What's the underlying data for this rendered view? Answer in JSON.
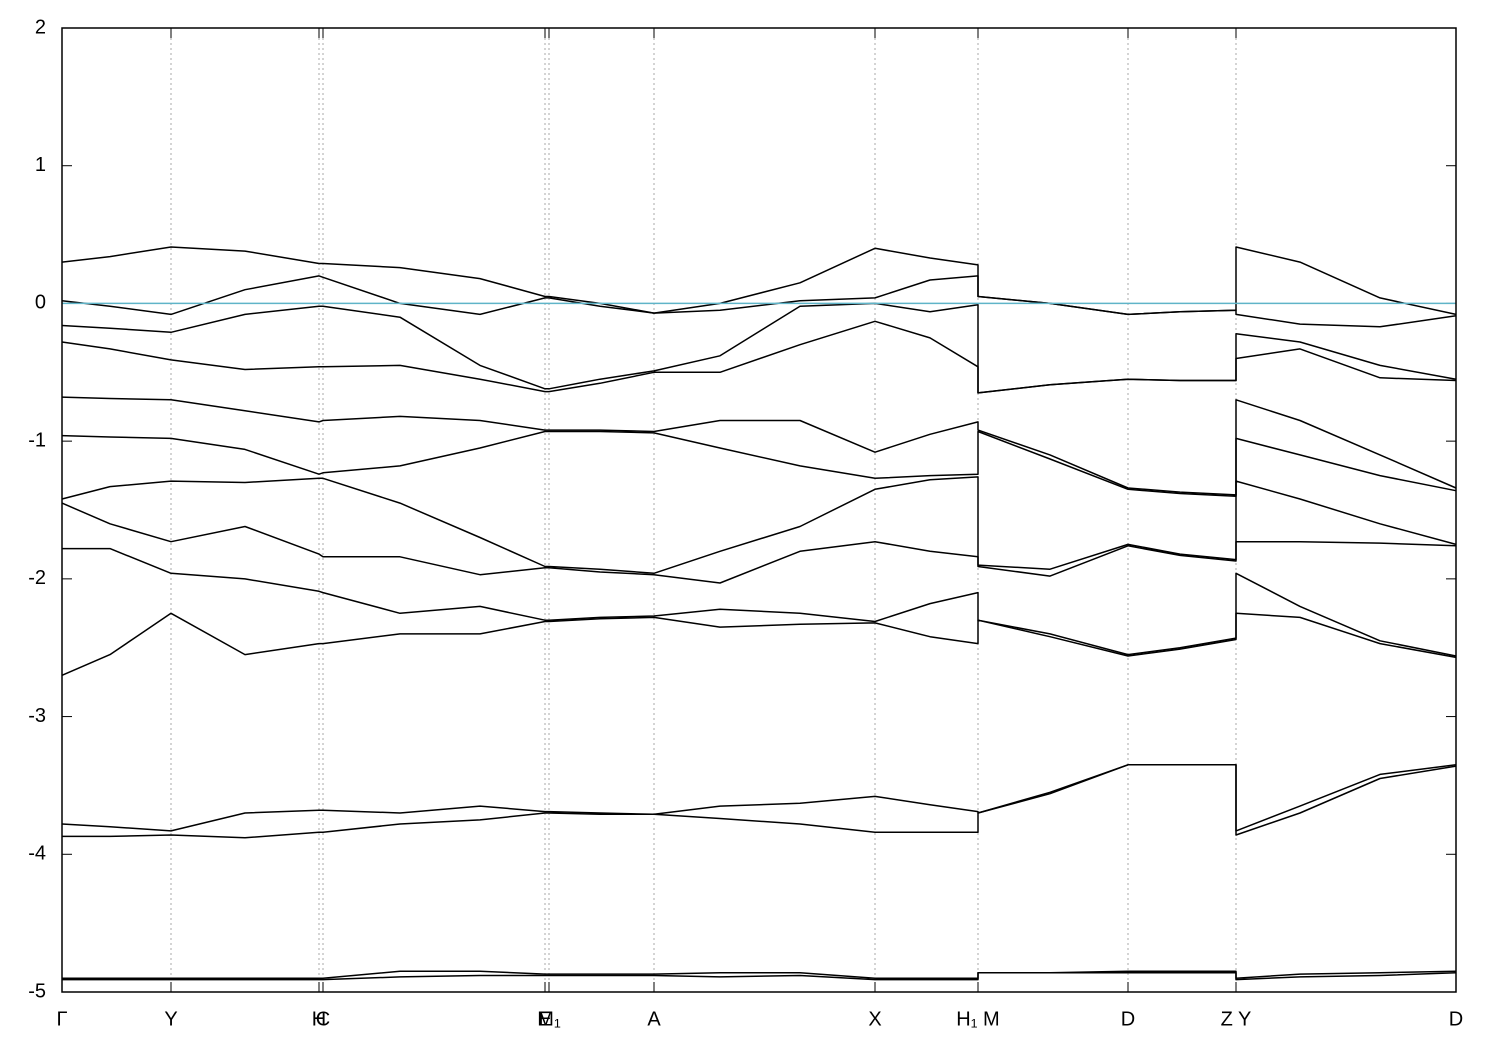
{
  "chart_data": {
    "type": "line",
    "color": "#000000",
    "hlines": [
      {
        "value": 0,
        "color": "#5fb4c8"
      }
    ],
    "xlim": [
      0,
      1.394
    ],
    "ylim": [
      -5,
      2
    ],
    "yticks": [
      -5,
      -4,
      -3,
      -2,
      -1,
      0,
      1,
      2
    ],
    "xticks": [
      {
        "value": 0,
        "label": "Γ"
      },
      {
        "value": 0.109,
        "label": "Y"
      },
      {
        "value": 0.257,
        "label": "H"
      },
      {
        "value": 0.261,
        "label": "C"
      },
      {
        "value": 0.483,
        "label": "E"
      },
      {
        "value": 0.487,
        "label": "M₁"
      },
      {
        "value": 0.592,
        "label": "A"
      },
      {
        "value": 0.813,
        "label": "X"
      },
      {
        "value": 0.916,
        "label": "H₁ M"
      },
      {
        "value": 1.066,
        "label": "D"
      },
      {
        "value": 1.174,
        "label": "Z Y"
      },
      {
        "value": 1.394,
        "label": "D"
      }
    ],
    "grid": true,
    "x": [
      0,
      0.048,
      0.109,
      0.183,
      0.257,
      0.261,
      0.338,
      0.418,
      0.483,
      0.487,
      0.538,
      0.592,
      0.658,
      0.738,
      0.813,
      0.868,
      0.916,
      0.916,
      0.988,
      1.066,
      1.118,
      1.174,
      1.174,
      1.238,
      1.318,
      1.394
    ],
    "series": [
      {
        "values": [
          0.3,
          0.34,
          0.41,
          0.38,
          0.29,
          0.29,
          0.26,
          0.18,
          0.05,
          0.05,
          0.0,
          -0.07,
          0.0,
          0.15,
          0.4,
          0.33,
          0.28,
          0.05,
          0.0,
          -0.08,
          -0.06,
          -0.05,
          0.41,
          0.3,
          0.04,
          -0.08
        ]
      },
      {
        "values": [
          0.02,
          -0.02,
          -0.08,
          0.1,
          0.2,
          0.19,
          0.0,
          -0.08,
          0.04,
          0.04,
          -0.02,
          -0.07,
          -0.05,
          0.02,
          0.04,
          0.17,
          0.2,
          0.05,
          0.0,
          -0.08,
          -0.06,
          -0.05,
          -0.08,
          -0.15,
          -0.17,
          -0.09
        ]
      },
      {
        "values": [
          -0.16,
          -0.18,
          -0.21,
          -0.08,
          -0.02,
          -0.02,
          -0.1,
          -0.45,
          -0.62,
          -0.62,
          -0.55,
          -0.49,
          -0.38,
          -0.02,
          0.0,
          -0.06,
          -0.01,
          -0.65,
          -0.59,
          -0.55,
          -0.56,
          -0.56,
          -0.22,
          -0.28,
          -0.45,
          -0.55
        ]
      },
      {
        "values": [
          -0.28,
          -0.33,
          -0.41,
          -0.48,
          -0.46,
          -0.46,
          -0.45,
          -0.55,
          -0.64,
          -0.64,
          -0.58,
          -0.5,
          -0.5,
          -0.3,
          -0.13,
          -0.25,
          -0.46,
          -0.65,
          -0.59,
          -0.55,
          -0.56,
          -0.56,
          -0.4,
          -0.33,
          -0.54,
          -0.56
        ]
      },
      {
        "values": [
          -0.68,
          -0.69,
          -0.7,
          -0.78,
          -0.86,
          -0.85,
          -0.82,
          -0.85,
          -0.92,
          -0.92,
          -0.92,
          -0.93,
          -0.85,
          -0.85,
          -1.08,
          -0.95,
          -0.86,
          -0.92,
          -1.1,
          -1.34,
          -1.37,
          -1.39,
          -0.7,
          -0.85,
          -1.1,
          -1.34
        ]
      },
      {
        "values": [
          -0.96,
          -0.97,
          -0.98,
          -1.06,
          -1.24,
          -1.23,
          -1.18,
          -1.05,
          -0.93,
          -0.93,
          -0.93,
          -0.94,
          -1.05,
          -1.18,
          -1.27,
          -1.25,
          -1.24,
          -0.93,
          -1.13,
          -1.35,
          -1.38,
          -1.4,
          -0.98,
          -1.1,
          -1.25,
          -1.36
        ]
      },
      {
        "values": [
          -1.42,
          -1.33,
          -1.29,
          -1.3,
          -1.27,
          -1.27,
          -1.45,
          -1.7,
          -1.91,
          -1.91,
          -1.93,
          -1.96,
          -1.8,
          -1.62,
          -1.35,
          -1.28,
          -1.26,
          -1.9,
          -1.93,
          -1.75,
          -1.82,
          -1.86,
          -1.29,
          -1.42,
          -1.6,
          -1.75
        ]
      },
      {
        "values": [
          -1.45,
          -1.6,
          -1.73,
          -1.62,
          -1.82,
          -1.84,
          -1.84,
          -1.97,
          -1.92,
          -1.92,
          -1.95,
          -1.97,
          -2.03,
          -1.8,
          -1.73,
          -1.8,
          -1.84,
          -1.91,
          -1.98,
          -1.76,
          -1.83,
          -1.87,
          -1.73,
          -1.73,
          -1.74,
          -1.76
        ]
      },
      {
        "values": [
          -1.78,
          -1.78,
          -1.96,
          -2.0,
          -2.09,
          -2.1,
          -2.25,
          -2.2,
          -2.3,
          -2.3,
          -2.28,
          -2.27,
          -2.22,
          -2.25,
          -2.31,
          -2.18,
          -2.1,
          -2.3,
          -2.4,
          -2.55,
          -2.5,
          -2.43,
          -1.96,
          -2.2,
          -2.45,
          -2.56
        ]
      },
      {
        "values": [
          -2.7,
          -2.55,
          -2.25,
          -2.55,
          -2.47,
          -2.47,
          -2.4,
          -2.4,
          -2.31,
          -2.31,
          -2.29,
          -2.28,
          -2.35,
          -2.33,
          -2.32,
          -2.42,
          -2.47,
          -2.3,
          -2.42,
          -2.56,
          -2.51,
          -2.44,
          -2.25,
          -2.28,
          -2.47,
          -2.57
        ]
      },
      {
        "values": [
          -3.78,
          -3.8,
          -3.83,
          -3.7,
          -3.68,
          -3.68,
          -3.7,
          -3.65,
          -3.69,
          -3.69,
          -3.7,
          -3.71,
          -3.65,
          -3.63,
          -3.58,
          -3.64,
          -3.69,
          -3.7,
          -3.55,
          -3.35,
          -3.35,
          -3.35,
          -3.83,
          -3.65,
          -3.42,
          -3.35
        ]
      },
      {
        "values": [
          -3.87,
          -3.87,
          -3.86,
          -3.88,
          -3.84,
          -3.84,
          -3.78,
          -3.75,
          -3.7,
          -3.7,
          -3.71,
          -3.71,
          -3.74,
          -3.78,
          -3.84,
          -3.84,
          -3.84,
          -3.7,
          -3.56,
          -3.35,
          -3.35,
          -3.35,
          -3.86,
          -3.7,
          -3.45,
          -3.36
        ]
      },
      {
        "values": [
          -4.9,
          -4.9,
          -4.9,
          -4.9,
          -4.9,
          -4.9,
          -4.85,
          -4.85,
          -4.87,
          -4.87,
          -4.87,
          -4.87,
          -4.86,
          -4.86,
          -4.9,
          -4.9,
          -4.9,
          -4.86,
          -4.86,
          -4.85,
          -4.85,
          -4.85,
          -4.9,
          -4.87,
          -4.86,
          -4.85
        ]
      },
      {
        "values": [
          -4.91,
          -4.91,
          -4.91,
          -4.91,
          -4.91,
          -4.91,
          -4.89,
          -4.88,
          -4.88,
          -4.88,
          -4.88,
          -4.88,
          -4.89,
          -4.88,
          -4.91,
          -4.91,
          -4.91,
          -4.86,
          -4.86,
          -4.86,
          -4.86,
          -4.86,
          -4.91,
          -4.89,
          -4.88,
          -4.86
        ]
      }
    ]
  }
}
